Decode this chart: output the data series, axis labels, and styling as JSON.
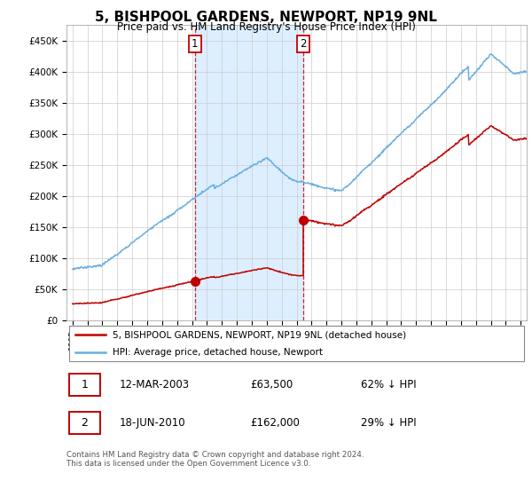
{
  "title": "5, BISHPOOL GARDENS, NEWPORT, NP19 9NL",
  "subtitle": "Price paid vs. HM Land Registry's House Price Index (HPI)",
  "legend_line1": "5, BISHPOOL GARDENS, NEWPORT, NP19 9NL (detached house)",
  "legend_line2": "HPI: Average price, detached house, Newport",
  "annotation1_date": "12-MAR-2003",
  "annotation1_price": "£63,500",
  "annotation1_hpi": "62% ↓ HPI",
  "annotation2_date": "18-JUN-2010",
  "annotation2_price": "£162,000",
  "annotation2_hpi": "29% ↓ HPI",
  "footer": "Contains HM Land Registry data © Crown copyright and database right 2024.\nThis data is licensed under the Open Government Licence v3.0.",
  "hpi_color": "#6aaee0",
  "price_color": "#c00000",
  "marker_color": "#c00000",
  "shade_color": "#ddeeff",
  "sale1_year": 2003.2,
  "sale1_price": 63500,
  "sale2_year": 2010.45,
  "sale2_price": 162000,
  "ylim_max": 475000,
  "xlim_min": 1994.6,
  "xlim_max": 2025.4
}
